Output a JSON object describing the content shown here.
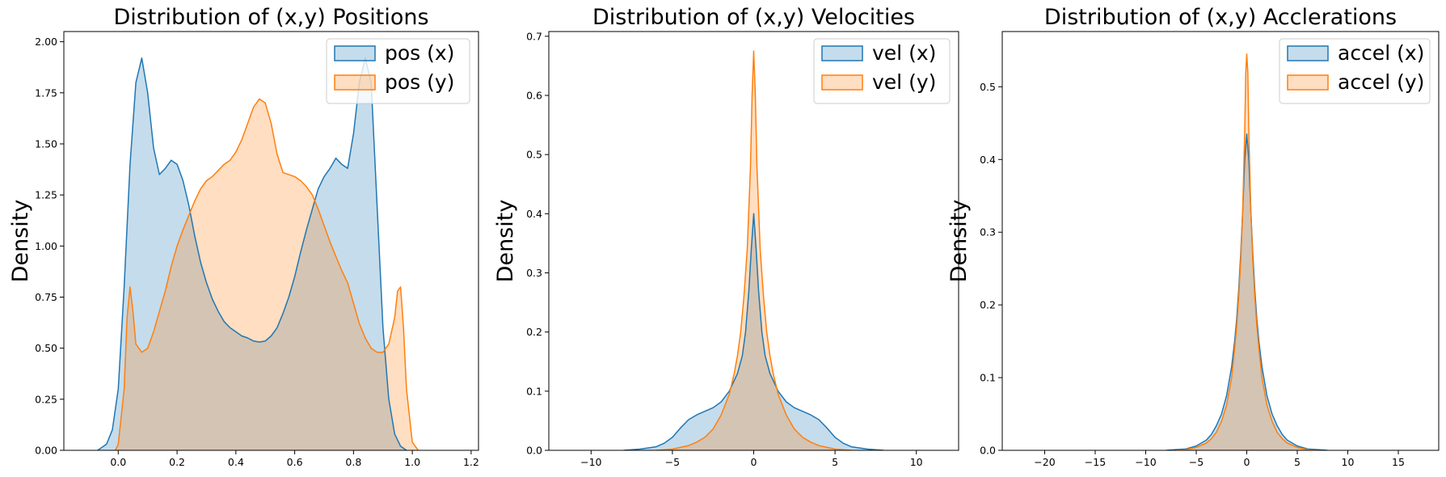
{
  "colors": {
    "series_x": "#1f77b4",
    "series_y": "#ff7f0e"
  },
  "chart_data": [
    {
      "type": "area",
      "title": "Distribution of (x,y) Positions",
      "xlabel": "",
      "ylabel": "Density",
      "xlim": [
        -0.185,
        1.225
      ],
      "ylim": [
        0,
        2.05
      ],
      "xticks": [
        "0.0",
        "0.2",
        "0.4",
        "0.6",
        "0.8",
        "1.0",
        "1.2"
      ],
      "yticks": [
        "0.00",
        "0.25",
        "0.50",
        "0.75",
        "1.00",
        "1.25",
        "1.50",
        "1.75",
        "2.00"
      ],
      "grid": false,
      "legend": "upper right",
      "series": [
        {
          "name": "pos (x)",
          "x": [
            -0.07,
            -0.04,
            -0.02,
            0.0,
            0.02,
            0.04,
            0.06,
            0.08,
            0.1,
            0.12,
            0.14,
            0.16,
            0.18,
            0.2,
            0.22,
            0.24,
            0.26,
            0.28,
            0.3,
            0.32,
            0.34,
            0.36,
            0.38,
            0.4,
            0.42,
            0.44,
            0.46,
            0.48,
            0.5,
            0.52,
            0.54,
            0.56,
            0.58,
            0.6,
            0.62,
            0.64,
            0.66,
            0.68,
            0.7,
            0.72,
            0.74,
            0.76,
            0.78,
            0.8,
            0.82,
            0.84,
            0.86,
            0.88,
            0.9,
            0.92,
            0.94,
            0.96,
            0.98
          ],
          "y": [
            0.0,
            0.03,
            0.1,
            0.3,
            0.8,
            1.4,
            1.8,
            1.92,
            1.75,
            1.48,
            1.35,
            1.38,
            1.42,
            1.4,
            1.32,
            1.2,
            1.05,
            0.92,
            0.82,
            0.74,
            0.68,
            0.63,
            0.6,
            0.58,
            0.56,
            0.55,
            0.535,
            0.53,
            0.535,
            0.56,
            0.6,
            0.67,
            0.75,
            0.85,
            0.97,
            1.08,
            1.18,
            1.28,
            1.34,
            1.38,
            1.43,
            1.4,
            1.38,
            1.55,
            1.8,
            1.92,
            1.8,
            1.2,
            0.6,
            0.25,
            0.08,
            0.02,
            0.0
          ]
        },
        {
          "name": "pos (y)",
          "x": [
            -0.01,
            0.0,
            0.02,
            0.03,
            0.04,
            0.05,
            0.06,
            0.08,
            0.1,
            0.12,
            0.14,
            0.16,
            0.18,
            0.2,
            0.22,
            0.24,
            0.26,
            0.28,
            0.3,
            0.32,
            0.34,
            0.36,
            0.38,
            0.4,
            0.42,
            0.44,
            0.46,
            0.48,
            0.5,
            0.52,
            0.54,
            0.56,
            0.58,
            0.6,
            0.62,
            0.64,
            0.66,
            0.68,
            0.7,
            0.72,
            0.74,
            0.76,
            0.78,
            0.8,
            0.82,
            0.84,
            0.86,
            0.88,
            0.9,
            0.92,
            0.94,
            0.95,
            0.96,
            0.97,
            0.98,
            1.0,
            1.02
          ],
          "y": [
            0.0,
            0.03,
            0.3,
            0.65,
            0.8,
            0.68,
            0.52,
            0.48,
            0.5,
            0.58,
            0.68,
            0.78,
            0.9,
            1.0,
            1.08,
            1.15,
            1.22,
            1.28,
            1.32,
            1.34,
            1.37,
            1.4,
            1.42,
            1.46,
            1.52,
            1.6,
            1.68,
            1.72,
            1.7,
            1.6,
            1.45,
            1.36,
            1.35,
            1.34,
            1.32,
            1.29,
            1.25,
            1.18,
            1.1,
            1.02,
            0.95,
            0.88,
            0.82,
            0.72,
            0.62,
            0.55,
            0.5,
            0.48,
            0.48,
            0.52,
            0.65,
            0.78,
            0.8,
            0.6,
            0.3,
            0.04,
            0.0
          ]
        }
      ]
    },
    {
      "type": "area",
      "title": "Distribution of (x,y) Velocities",
      "xlabel": "",
      "ylabel": "Density",
      "xlim": [
        -12.6,
        12.6
      ],
      "ylim": [
        0,
        0.708
      ],
      "xticks": [
        "−10",
        "−5",
        "0",
        "5",
        "10"
      ],
      "yticks": [
        "0.0",
        "0.1",
        "0.2",
        "0.3",
        "0.4",
        "0.5",
        "0.6",
        "0.7"
      ],
      "grid": false,
      "legend": "upper right",
      "series": [
        {
          "name": "vel (x)",
          "x": [
            -8,
            -7,
            -6,
            -5.5,
            -5,
            -4.5,
            -4,
            -3.5,
            -3,
            -2.5,
            -2,
            -1.5,
            -1,
            -0.7,
            -0.5,
            -0.3,
            -0.15,
            0,
            0.15,
            0.3,
            0.5,
            0.7,
            1,
            1.5,
            2,
            2.5,
            3,
            3.5,
            4,
            4.5,
            5,
            5.5,
            6,
            7,
            8
          ],
          "y": [
            0.0,
            0.002,
            0.006,
            0.012,
            0.022,
            0.038,
            0.052,
            0.06,
            0.066,
            0.072,
            0.082,
            0.1,
            0.13,
            0.16,
            0.2,
            0.27,
            0.34,
            0.4,
            0.34,
            0.27,
            0.2,
            0.16,
            0.13,
            0.1,
            0.082,
            0.072,
            0.066,
            0.06,
            0.052,
            0.038,
            0.022,
            0.012,
            0.006,
            0.002,
            0.0
          ]
        },
        {
          "name": "vel (y)",
          "x": [
            -6,
            -5,
            -4,
            -3.5,
            -3,
            -2.5,
            -2,
            -1.5,
            -1.2,
            -1,
            -0.8,
            -0.6,
            -0.4,
            -0.2,
            -0.1,
            0,
            0.1,
            0.2,
            0.4,
            0.6,
            0.8,
            1,
            1.2,
            1.5,
            2,
            2.5,
            3,
            3.5,
            4,
            5,
            6
          ],
          "y": [
            0.0,
            0.002,
            0.008,
            0.014,
            0.022,
            0.036,
            0.06,
            0.095,
            0.13,
            0.16,
            0.2,
            0.26,
            0.34,
            0.48,
            0.6,
            0.675,
            0.6,
            0.48,
            0.34,
            0.26,
            0.2,
            0.16,
            0.13,
            0.095,
            0.06,
            0.036,
            0.022,
            0.014,
            0.008,
            0.002,
            0.0
          ]
        }
      ]
    },
    {
      "type": "area",
      "title": "Distribution of (x,y) Acclerations",
      "xlabel": "",
      "ylabel": "Density",
      "xlim": [
        -24.2,
        19.0
      ],
      "ylim": [
        0,
        0.576
      ],
      "xticks": [
        "−20",
        "−15",
        "−10",
        "−5",
        "0",
        "5",
        "10",
        "15"
      ],
      "yticks": [
        "0.0",
        "0.1",
        "0.2",
        "0.3",
        "0.4",
        "0.5"
      ],
      "grid": false,
      "legend": "upper right",
      "series": [
        {
          "name": "accel (x)",
          "x": [
            -8,
            -6,
            -5,
            -4,
            -3.5,
            -3,
            -2.5,
            -2,
            -1.5,
            -1.2,
            -1,
            -0.8,
            -0.6,
            -0.4,
            -0.2,
            0,
            0.2,
            0.4,
            0.6,
            0.8,
            1,
            1.2,
            1.5,
            2,
            2.5,
            3,
            3.5,
            4,
            5,
            6,
            8
          ],
          "y": [
            0.0,
            0.002,
            0.006,
            0.014,
            0.022,
            0.034,
            0.05,
            0.075,
            0.115,
            0.15,
            0.18,
            0.22,
            0.27,
            0.33,
            0.4,
            0.435,
            0.4,
            0.33,
            0.27,
            0.22,
            0.18,
            0.15,
            0.115,
            0.075,
            0.05,
            0.034,
            0.022,
            0.014,
            0.006,
            0.002,
            0.0
          ]
        },
        {
          "name": "accel (y)",
          "x": [
            -7,
            -6,
            -5,
            -4,
            -3.5,
            -3,
            -2.5,
            -2,
            -1.5,
            -1.2,
            -1,
            -0.8,
            -0.6,
            -0.4,
            -0.2,
            -0.1,
            0,
            0.1,
            0.2,
            0.4,
            0.6,
            0.8,
            1,
            1.2,
            1.5,
            2,
            2.5,
            3,
            3.5,
            4,
            5,
            6,
            7
          ],
          "y": [
            0.0,
            0.001,
            0.004,
            0.01,
            0.016,
            0.025,
            0.04,
            0.062,
            0.1,
            0.14,
            0.17,
            0.21,
            0.26,
            0.33,
            0.44,
            0.52,
            0.545,
            0.52,
            0.44,
            0.33,
            0.26,
            0.21,
            0.17,
            0.14,
            0.1,
            0.062,
            0.04,
            0.025,
            0.016,
            0.01,
            0.004,
            0.001,
            0.0
          ]
        }
      ]
    }
  ]
}
